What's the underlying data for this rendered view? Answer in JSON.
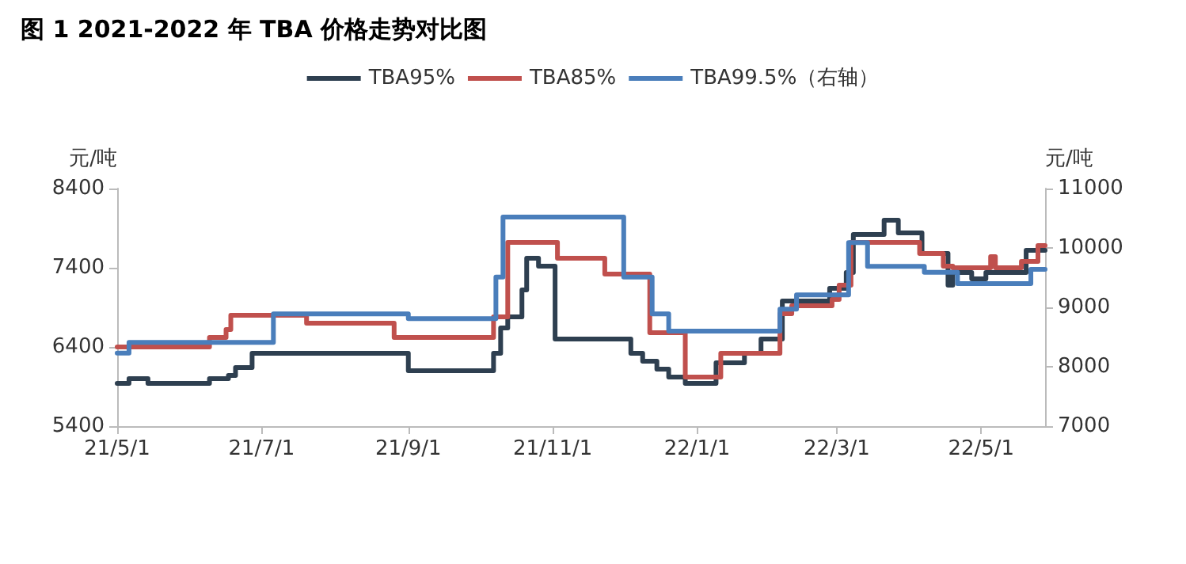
{
  "chart_data": {
    "type": "step",
    "title": "图 1 2021-2022 年 TBA 价格走势对比图",
    "ylabel": "元/吨",
    "y2label": "元/吨",
    "xlim": [
      "2021-05-01",
      "2022-05-28"
    ],
    "xticks": [
      {
        "value": "2021-05-01",
        "label": "21/5/1"
      },
      {
        "value": "2021-07-01",
        "label": "21/7/1"
      },
      {
        "value": "2021-09-01",
        "label": "21/9/1"
      },
      {
        "value": "2021-11-01",
        "label": "21/11/1"
      },
      {
        "value": "2022-01-01",
        "label": "22/1/1"
      },
      {
        "value": "2022-03-01",
        "label": "22/3/1"
      },
      {
        "value": "2022-05-01",
        "label": "22/5/1"
      }
    ],
    "ylim": [
      5400,
      8400
    ],
    "yticks": [
      5400,
      6400,
      7400,
      8400
    ],
    "y2lim": [
      7000,
      11000
    ],
    "y2ticks": [
      7000,
      8000,
      9000,
      10000,
      11000
    ],
    "grid": false,
    "legend": "top",
    "marker": "none",
    "line_style": "solid",
    "series": [
      {
        "name": "TBA95%",
        "color": "#2e3f50",
        "x": [
          "2021-05-01",
          "2021-05-06",
          "2021-05-14",
          "2021-06-09",
          "2021-06-17",
          "2021-06-20",
          "2021-06-27",
          "2021-09-01",
          "2021-10-07",
          "2021-10-10",
          "2021-10-13",
          "2021-10-19",
          "2021-10-21",
          "2021-10-26",
          "2021-11-02",
          "2021-12-04",
          "2021-12-09",
          "2021-12-15",
          "2021-12-20",
          "2021-12-27",
          "2022-01-09",
          "2022-01-21",
          "2022-01-28",
          "2022-02-06",
          "2022-02-26",
          "2022-03-05",
          "2022-03-08",
          "2022-03-21",
          "2022-03-27",
          "2022-04-06",
          "2022-04-17",
          "2022-04-19",
          "2022-04-27",
          "2022-05-03",
          "2022-05-20",
          "2022-05-28"
        ],
        "values": [
          5940,
          6000,
          5940,
          6000,
          6040,
          6140,
          6320,
          6100,
          6320,
          6640,
          6780,
          7120,
          7520,
          7420,
          6500,
          6320,
          6220,
          6120,
          6020,
          5940,
          6200,
          6320,
          6500,
          6980,
          7140,
          7340,
          7820,
          8000,
          7840,
          7580,
          7180,
          7340,
          7260,
          7340,
          7620,
          7620
        ]
      },
      {
        "name": "TBA85%",
        "color": "#c0504d",
        "x": [
          "2021-05-01",
          "2021-06-09",
          "2021-06-16",
          "2021-06-18",
          "2021-07-20",
          "2021-08-26",
          "2021-10-07",
          "2021-10-13",
          "2021-11-03",
          "2021-11-23",
          "2021-12-12",
          "2021-12-27",
          "2022-01-11",
          "2022-02-05",
          "2022-02-10",
          "2022-02-27",
          "2022-03-02",
          "2022-03-07",
          "2022-04-05",
          "2022-04-15",
          "2022-04-19",
          "2022-05-05",
          "2022-05-07",
          "2022-05-18",
          "2022-05-25",
          "2022-05-28"
        ],
        "values": [
          6400,
          6520,
          6620,
          6800,
          6700,
          6520,
          6780,
          7720,
          7520,
          7320,
          6580,
          6020,
          6320,
          6820,
          6920,
          7000,
          7180,
          7720,
          7580,
          7420,
          7400,
          7540,
          7400,
          7480,
          7680,
          7680
        ]
      },
      {
        "name": "TBA99.5%（右轴）",
        "color": "#4a7ebb",
        "axis": "y2",
        "x": [
          "2021-05-01",
          "2021-05-06",
          "2021-07-06",
          "2021-09-01",
          "2021-10-08",
          "2021-10-11",
          "2021-12-01",
          "2021-12-13",
          "2021-12-20",
          "2022-02-05",
          "2022-02-12",
          "2022-03-06",
          "2022-03-14",
          "2022-04-07",
          "2022-04-21",
          "2022-05-22",
          "2022-05-28"
        ],
        "values": [
          8230,
          8410,
          8890,
          8810,
          9510,
          10520,
          9510,
          8890,
          8600,
          8970,
          9210,
          10090,
          9690,
          9590,
          9400,
          9640,
          9640
        ]
      }
    ]
  }
}
